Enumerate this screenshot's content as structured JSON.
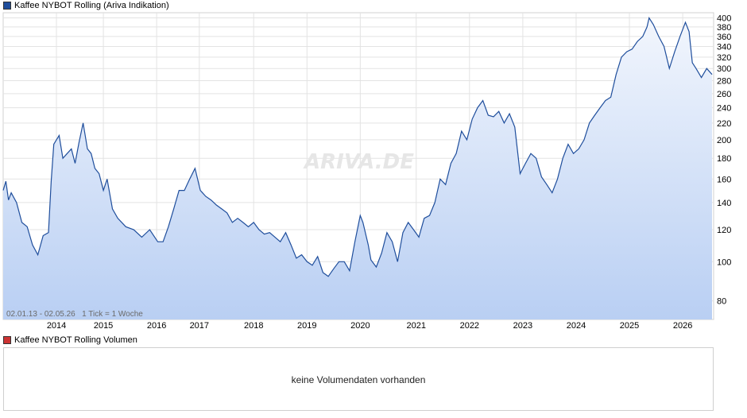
{
  "legend": {
    "price_label": "Kaffee NYBOT Rolling (Ariva Indikation)",
    "price_color": "#1f4e9c",
    "volume_label": "Kaffee NYBOT Rolling Volumen",
    "volume_color": "#cc3333"
  },
  "range_info": "02.01.13 - 02.05.26   1 Tick = 1 Woche",
  "watermark": "ARIVA.DE",
  "volume_panel": {
    "message": "keine Volumendaten vorhanden"
  },
  "chart_data": {
    "type": "area",
    "title": "Kaffee NYBOT Rolling (Ariva Indikation)",
    "y_scale": "log",
    "ylim": [
      72,
      412
    ],
    "y_ticks": [
      80,
      100,
      120,
      140,
      160,
      180,
      200,
      220,
      240,
      260,
      280,
      300,
      320,
      340,
      360,
      380,
      400
    ],
    "xlim": [
      2013.0,
      2026.33
    ],
    "x_tick_labels": [
      "2014",
      "2015",
      "2016",
      "2017",
      "2018",
      "2019",
      "2020",
      "2021",
      "2022",
      "2023",
      "2024",
      "2025",
      "2026"
    ],
    "x_tick_positions": [
      2014.0,
      2014.88,
      2015.88,
      2016.68,
      2017.7,
      2018.7,
      2019.7,
      2020.75,
      2021.75,
      2022.75,
      2023.75,
      2024.75,
      2025.75
    ],
    "grid": true,
    "line_color": "#1f4e9c",
    "fill_top_color": "#f2f6fd",
    "fill_bottom_color": "#b9cff3",
    "series": [
      {
        "x": [
          2013.0,
          2013.05,
          2013.1,
          2013.15,
          2013.25,
          2013.35,
          2013.45,
          2013.55,
          2013.65,
          2013.75,
          2013.85,
          2013.9,
          2013.95,
          2014.05,
          2014.12,
          2014.2,
          2014.28,
          2014.35,
          2014.42,
          2014.5,
          2014.58,
          2014.65,
          2014.72,
          2014.8,
          2014.88,
          2014.95,
          2015.05,
          2015.15,
          2015.3,
          2015.45,
          2015.6,
          2015.75,
          2015.9,
          2016.0,
          2016.1,
          2016.2,
          2016.3,
          2016.4,
          2016.5,
          2016.6,
          2016.7,
          2016.8,
          2016.9,
          2017.0,
          2017.1,
          2017.2,
          2017.3,
          2017.4,
          2017.5,
          2017.6,
          2017.7,
          2017.8,
          2017.9,
          2018.0,
          2018.1,
          2018.2,
          2018.3,
          2018.4,
          2018.5,
          2018.6,
          2018.7,
          2018.8,
          2018.9,
          2019.0,
          2019.1,
          2019.2,
          2019.3,
          2019.4,
          2019.5,
          2019.6,
          2019.7,
          2019.75,
          2019.85,
          2019.9,
          2020.0,
          2020.1,
          2020.2,
          2020.3,
          2020.4,
          2020.5,
          2020.6,
          2020.7,
          2020.8,
          2020.9,
          2021.0,
          2021.1,
          2021.2,
          2021.3,
          2021.4,
          2021.5,
          2021.6,
          2021.7,
          2021.8,
          2021.9,
          2022.0,
          2022.1,
          2022.2,
          2022.3,
          2022.4,
          2022.5,
          2022.6,
          2022.7,
          2022.8,
          2022.9,
          2023.0,
          2023.1,
          2023.2,
          2023.3,
          2023.4,
          2023.5,
          2023.6,
          2023.7,
          2023.8,
          2023.9,
          2024.0,
          2024.1,
          2024.2,
          2024.3,
          2024.4,
          2024.5,
          2024.6,
          2024.7,
          2024.8,
          2024.9,
          2025.0,
          2025.08,
          2025.12,
          2025.2,
          2025.3,
          2025.4,
          2025.5,
          2025.6,
          2025.7,
          2025.8,
          2025.87,
          2025.93,
          2026.0,
          2026.1,
          2026.2,
          2026.3
        ],
        "values": [
          150,
          158,
          142,
          148,
          140,
          125,
          122,
          110,
          104,
          116,
          118,
          158,
          195,
          205,
          180,
          185,
          190,
          175,
          196,
          220,
          190,
          185,
          170,
          165,
          150,
          160,
          135,
          128,
          122,
          120,
          115,
          120,
          112,
          112,
          122,
          135,
          150,
          150,
          160,
          170,
          150,
          145,
          142,
          138,
          135,
          132,
          125,
          128,
          125,
          122,
          125,
          120,
          117,
          118,
          115,
          112,
          118,
          110,
          102,
          104,
          100,
          98,
          103,
          94,
          92,
          96,
          100,
          100,
          95,
          112,
          130,
          125,
          110,
          101,
          97,
          105,
          118,
          112,
          100,
          118,
          125,
          120,
          115,
          128,
          130,
          140,
          160,
          155,
          175,
          185,
          210,
          200,
          225,
          240,
          250,
          230,
          228,
          235,
          220,
          232,
          215,
          165,
          175,
          185,
          180,
          162,
          155,
          148,
          160,
          180,
          195,
          185,
          190,
          200,
          220,
          230,
          240,
          250,
          255,
          290,
          320,
          330,
          335,
          350,
          360,
          380,
          400,
          385,
          360,
          340,
          300,
          330,
          360,
          390,
          370,
          310,
          300,
          285,
          300,
          290
        ]
      }
    ]
  }
}
